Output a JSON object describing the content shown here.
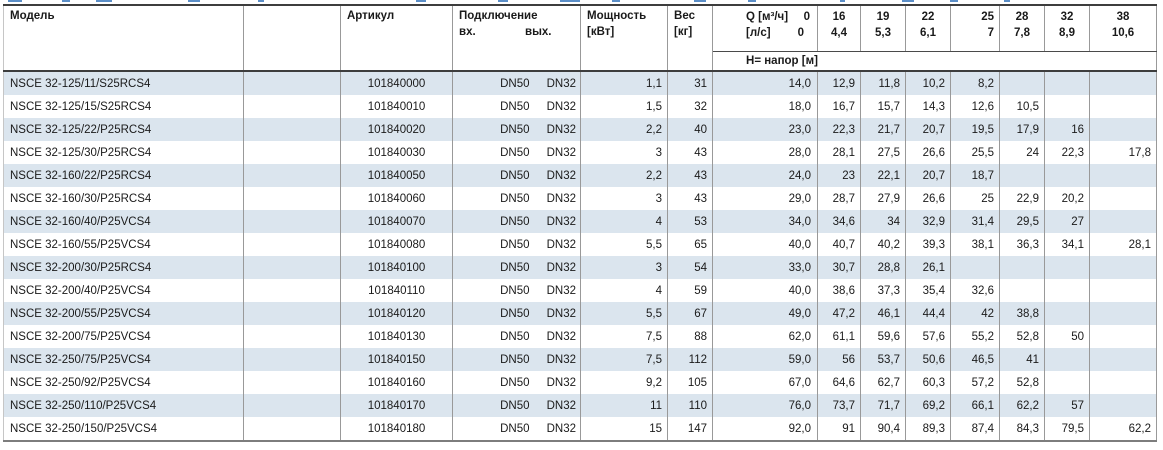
{
  "colors": {
    "stripe_row": "#dbe5ee",
    "border_dark": "#3d3d3d",
    "border_gray": "#999999",
    "text": "#1a1a1a",
    "top_fragment_blue": "#5b8ec7"
  },
  "table": {
    "headers": {
      "model": "Модель",
      "article": "Артикул",
      "connection": "Подключение",
      "connection_in": "вх.",
      "connection_out": "вых.",
      "power_line1": "Мощность",
      "power_line2": "[кВт]",
      "weight_line1": "Вес",
      "weight_line2": "[кг]",
      "q_line1_label": "Q [м³/ч]",
      "q_line1_zero": "0",
      "q_line2_label": "[л/с]",
      "q_line2_zero": "0",
      "q_cols": [
        {
          "m3h": "16",
          "ls": "4,4"
        },
        {
          "m3h": "19",
          "ls": "5,3"
        },
        {
          "m3h": "22",
          "ls": "6,1"
        },
        {
          "m3h": "25",
          "ls": "7"
        },
        {
          "m3h": "28",
          "ls": "7,8"
        },
        {
          "m3h": "32",
          "ls": "8,9"
        },
        {
          "m3h": "38",
          "ls": "10,6"
        }
      ],
      "head_band": "Н= напор [м]"
    },
    "rows": [
      {
        "model": "NSCE 32-125/11/S25RCS4",
        "article": "101840000",
        "dn_in": "DN50",
        "dn_out": "DN32",
        "power": "1,1",
        "weight": "31",
        "h": [
          "14,0",
          "12,9",
          "11,8",
          "10,2",
          "8,2",
          "",
          "",
          ""
        ]
      },
      {
        "model": "NSCE 32-125/15/S25RCS4",
        "article": "101840010",
        "dn_in": "DN50",
        "dn_out": "DN32",
        "power": "1,5",
        "weight": "32",
        "h": [
          "18,0",
          "16,7",
          "15,7",
          "14,3",
          "12,6",
          "10,5",
          "",
          ""
        ]
      },
      {
        "model": "NSCE 32-125/22/P25RCS4",
        "article": "101840020",
        "dn_in": "DN50",
        "dn_out": "DN32",
        "power": "2,2",
        "weight": "40",
        "h": [
          "23,0",
          "22,3",
          "21,7",
          "20,7",
          "19,5",
          "17,9",
          "16",
          ""
        ]
      },
      {
        "model": "NSCE 32-125/30/P25RCS4",
        "article": "101840030",
        "dn_in": "DN50",
        "dn_out": "DN32",
        "power": "3",
        "weight": "43",
        "h": [
          "28,0",
          "28,1",
          "27,5",
          "26,6",
          "25,5",
          "24",
          "22,3",
          "17,8"
        ]
      },
      {
        "model": "NSCE 32-160/22/P25RCS4",
        "article": "101840050",
        "dn_in": "DN50",
        "dn_out": "DN32",
        "power": "2,2",
        "weight": "43",
        "h": [
          "24,0",
          "23",
          "22,1",
          "20,7",
          "18,7",
          "",
          "",
          ""
        ]
      },
      {
        "model": "NSCE 32-160/30/P25RCS4",
        "article": "101840060",
        "dn_in": "DN50",
        "dn_out": "DN32",
        "power": "3",
        "weight": "43",
        "h": [
          "29,0",
          "28,7",
          "27,9",
          "26,6",
          "25",
          "22,9",
          "20,2",
          ""
        ]
      },
      {
        "model": "NSCE 32-160/40/P25VCS4",
        "article": "101840070",
        "dn_in": "DN50",
        "dn_out": "DN32",
        "power": "4",
        "weight": "53",
        "h": [
          "34,0",
          "34,6",
          "34",
          "32,9",
          "31,4",
          "29,5",
          "27",
          ""
        ]
      },
      {
        "model": "NSCE 32-160/55/P25VCS4",
        "article": "101840080",
        "dn_in": "DN50",
        "dn_out": "DN32",
        "power": "5,5",
        "weight": "65",
        "h": [
          "40,0",
          "40,7",
          "40,2",
          "39,3",
          "38,1",
          "36,3",
          "34,1",
          "28,1"
        ]
      },
      {
        "model": "NSCE 32-200/30/P25RCS4",
        "article": "101840100",
        "dn_in": "DN50",
        "dn_out": "DN32",
        "power": "3",
        "weight": "54",
        "h": [
          "33,0",
          "30,7",
          "28,8",
          "26,1",
          "",
          "",
          "",
          ""
        ]
      },
      {
        "model": "NSCE 32-200/40/P25VCS4",
        "article": "101840110",
        "dn_in": "DN50",
        "dn_out": "DN32",
        "power": "4",
        "weight": "59",
        "h": [
          "40,0",
          "38,6",
          "37,3",
          "35,4",
          "32,6",
          "",
          "",
          ""
        ]
      },
      {
        "model": "NSCE 32-200/55/P25VCS4",
        "article": "101840120",
        "dn_in": "DN50",
        "dn_out": "DN32",
        "power": "5,5",
        "weight": "67",
        "h": [
          "49,0",
          "47,2",
          "46,1",
          "44,4",
          "42",
          "38,8",
          "",
          ""
        ]
      },
      {
        "model": "NSCE 32-200/75/P25VCS4",
        "article": "101840130",
        "dn_in": "DN50",
        "dn_out": "DN32",
        "power": "7,5",
        "weight": "88",
        "h": [
          "62,0",
          "61,1",
          "59,6",
          "57,6",
          "55,2",
          "52,8",
          "50",
          ""
        ]
      },
      {
        "model": "NSCE 32-250/75/P25VCS4",
        "article": "101840150",
        "dn_in": "DN50",
        "dn_out": "DN32",
        "power": "7,5",
        "weight": "112",
        "h": [
          "59,0",
          "56",
          "53,7",
          "50,6",
          "46,5",
          "41",
          "",
          ""
        ]
      },
      {
        "model": "NSCE 32-250/92/P25VCS4",
        "article": "101840160",
        "dn_in": "DN50",
        "dn_out": "DN32",
        "power": "9,2",
        "weight": "105",
        "h": [
          "67,0",
          "64,6",
          "62,7",
          "60,3",
          "57,2",
          "52,8",
          "",
          ""
        ]
      },
      {
        "model": "NSCE 32-250/110/P25VCS4",
        "article": "101840170",
        "dn_in": "DN50",
        "dn_out": "DN32",
        "power": "11",
        "weight": "110",
        "h": [
          "76,0",
          "73,7",
          "71,7",
          "69,2",
          "66,1",
          "62,2",
          "57",
          ""
        ]
      },
      {
        "model": "NSCE 32-250/150/P25VCS4",
        "article": "101840180",
        "dn_in": "DN50",
        "dn_out": "DN32",
        "power": "15",
        "weight": "147",
        "h": [
          "92,0",
          "91",
          "90,4",
          "89,3",
          "87,4",
          "84,3",
          "79,5",
          "62,2"
        ]
      }
    ]
  }
}
